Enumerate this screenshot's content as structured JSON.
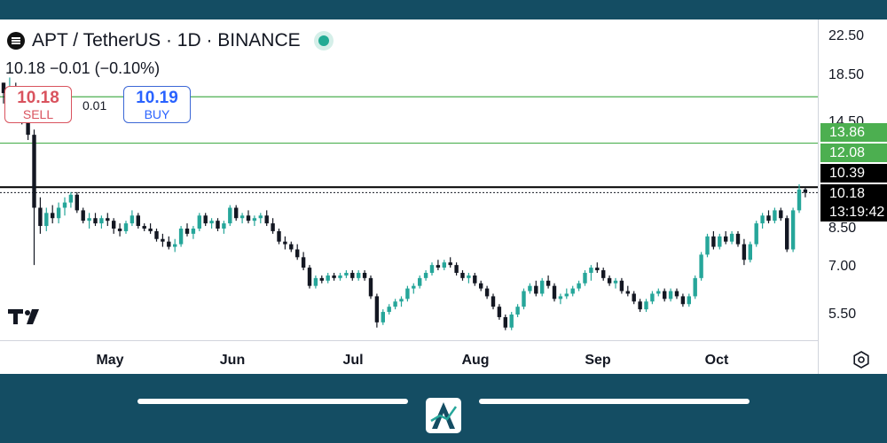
{
  "header": {
    "symbol_title": "APT / TetherUS · 1D · BINANCE",
    "ohlc": "10.18  −0.01 (−0.10%)"
  },
  "trade": {
    "sell_price": "10.18",
    "sell_label": "SELL",
    "spread": "0.01",
    "buy_price": "10.19",
    "buy_label": "BUY"
  },
  "colors": {
    "up": "#26a69a",
    "down": "#131722",
    "level_line": "#4caf50",
    "price_line": "#000000",
    "frame": "#144d63"
  },
  "chart_data": {
    "type": "candlestick",
    "title": "APT / TetherUS · 1D · BINANCE",
    "y_ticks": [
      "22.50",
      "18.50",
      "14.50",
      "8.50",
      "7.00",
      "5.50"
    ],
    "x_ticks": [
      "May",
      "Jun",
      "Jul",
      "Aug",
      "Sep",
      "Oct"
    ],
    "horizontal_levels": [
      {
        "label": "13.86",
        "value": 13.86,
        "color": "#4caf50"
      },
      {
        "label": "12.08",
        "value": 12.08,
        "color": "#4caf50"
      },
      {
        "label": "10.39",
        "value": 10.39,
        "color": "#000000"
      }
    ],
    "last_price": {
      "label": "10.18",
      "value": 10.18
    },
    "countdown": "13:19:42",
    "series": [
      {
        "values": [
          [
            14.4,
            14.4,
            13.6,
            14.0
          ],
          [
            14.0,
            14.6,
            13.6,
            14.2
          ],
          [
            14.2,
            14.4,
            13.2,
            13.5
          ],
          [
            13.5,
            13.8,
            12.8,
            13.0
          ],
          [
            13.0,
            13.2,
            12.2,
            12.4
          ],
          [
            12.4,
            12.6,
            7.4,
            9.6
          ],
          [
            9.6,
            10.0,
            8.6,
            8.9
          ],
          [
            8.9,
            9.6,
            8.7,
            9.4
          ],
          [
            9.4,
            9.7,
            9.0,
            9.2
          ],
          [
            9.2,
            9.8,
            9.0,
            9.6
          ],
          [
            9.6,
            10.0,
            9.3,
            9.8
          ],
          [
            9.8,
            10.2,
            9.6,
            10.1
          ],
          [
            10.1,
            10.2,
            9.4,
            9.5
          ],
          [
            9.5,
            9.6,
            9.0,
            9.1
          ],
          [
            9.1,
            9.4,
            8.8,
            9.2
          ],
          [
            9.2,
            9.4,
            8.9,
            9.0
          ],
          [
            9.0,
            9.3,
            8.8,
            9.2
          ],
          [
            9.2,
            9.4,
            8.9,
            9.1
          ],
          [
            9.1,
            9.2,
            8.6,
            8.8
          ],
          [
            8.8,
            9.0,
            8.5,
            8.7
          ],
          [
            8.7,
            9.1,
            8.6,
            9.0
          ],
          [
            9.0,
            9.5,
            8.9,
            9.3
          ],
          [
            9.3,
            9.4,
            8.8,
            8.9
          ],
          [
            8.9,
            9.0,
            8.7,
            8.8
          ],
          [
            8.8,
            9.0,
            8.6,
            8.7
          ],
          [
            8.7,
            8.8,
            8.3,
            8.4
          ],
          [
            8.4,
            8.6,
            8.1,
            8.3
          ],
          [
            8.3,
            8.5,
            8.0,
            8.1
          ],
          [
            8.1,
            8.4,
            7.9,
            8.2
          ],
          [
            8.2,
            8.9,
            8.1,
            8.8
          ],
          [
            8.8,
            9.0,
            8.5,
            8.6
          ],
          [
            8.6,
            8.9,
            8.4,
            8.8
          ],
          [
            8.8,
            9.4,
            8.7,
            9.3
          ],
          [
            9.3,
            9.4,
            8.9,
            9.0
          ],
          [
            9.0,
            9.2,
            8.8,
            9.1
          ],
          [
            9.1,
            9.2,
            8.7,
            8.8
          ],
          [
            8.8,
            9.1,
            8.6,
            9.0
          ],
          [
            9.0,
            9.7,
            8.9,
            9.6
          ],
          [
            9.6,
            9.7,
            9.1,
            9.2
          ],
          [
            9.2,
            9.4,
            9.0,
            9.3
          ],
          [
            9.3,
            9.5,
            9.0,
            9.1
          ],
          [
            9.1,
            9.3,
            8.9,
            9.2
          ],
          [
            9.2,
            9.4,
            9.0,
            9.3
          ],
          [
            9.3,
            9.5,
            8.9,
            9.0
          ],
          [
            9.0,
            9.2,
            8.6,
            8.7
          ],
          [
            8.7,
            8.8,
            8.2,
            8.3
          ],
          [
            8.3,
            8.5,
            8.0,
            8.2
          ],
          [
            8.2,
            8.3,
            7.9,
            8.0
          ],
          [
            8.0,
            8.2,
            7.6,
            7.7
          ],
          [
            7.7,
            7.9,
            7.2,
            7.3
          ],
          [
            7.3,
            7.4,
            6.5,
            6.6
          ],
          [
            6.6,
            7.0,
            6.5,
            6.9
          ],
          [
            6.9,
            7.0,
            6.7,
            6.8
          ],
          [
            6.8,
            7.1,
            6.7,
            7.0
          ],
          [
            7.0,
            7.1,
            6.8,
            6.9
          ],
          [
            6.9,
            7.1,
            6.8,
            7.0
          ],
          [
            7.0,
            7.2,
            6.9,
            7.1
          ],
          [
            7.1,
            7.2,
            6.8,
            6.9
          ],
          [
            6.9,
            7.2,
            6.8,
            7.1
          ],
          [
            7.1,
            7.2,
            6.8,
            6.9
          ],
          [
            6.9,
            7.0,
            6.1,
            6.2
          ],
          [
            6.2,
            6.3,
            5.0,
            5.2
          ],
          [
            5.2,
            5.7,
            5.1,
            5.6
          ],
          [
            5.6,
            5.9,
            5.5,
            5.8
          ],
          [
            5.8,
            6.1,
            5.7,
            6.0
          ],
          [
            6.0,
            6.2,
            5.8,
            6.1
          ],
          [
            6.1,
            6.6,
            6.0,
            6.5
          ],
          [
            6.5,
            6.7,
            6.3,
            6.6
          ],
          [
            6.6,
            7.0,
            6.5,
            6.9
          ],
          [
            6.9,
            7.2,
            6.8,
            7.1
          ],
          [
            7.1,
            7.5,
            7.0,
            7.4
          ],
          [
            7.4,
            7.6,
            7.2,
            7.3
          ],
          [
            7.3,
            7.6,
            7.2,
            7.5
          ],
          [
            7.5,
            7.7,
            7.3,
            7.4
          ],
          [
            7.4,
            7.5,
            7.0,
            7.1
          ],
          [
            7.1,
            7.2,
            6.8,
            6.9
          ],
          [
            6.9,
            7.1,
            6.7,
            7.0
          ],
          [
            7.0,
            7.1,
            6.6,
            6.7
          ],
          [
            6.7,
            6.8,
            6.4,
            6.5
          ],
          [
            6.5,
            6.6,
            6.1,
            6.2
          ],
          [
            6.2,
            6.3,
            5.7,
            5.8
          ],
          [
            5.8,
            5.9,
            5.3,
            5.4
          ],
          [
            5.4,
            5.5,
            4.9,
            5.0
          ],
          [
            5.0,
            5.6,
            4.9,
            5.5
          ],
          [
            5.5,
            5.9,
            5.4,
            5.8
          ],
          [
            5.8,
            6.5,
            5.7,
            6.4
          ],
          [
            6.4,
            6.7,
            6.3,
            6.6
          ],
          [
            6.6,
            6.8,
            6.2,
            6.3
          ],
          [
            6.3,
            6.9,
            6.2,
            6.8
          ],
          [
            6.8,
            7.0,
            6.5,
            6.6
          ],
          [
            6.6,
            6.7,
            6.0,
            6.1
          ],
          [
            6.1,
            6.3,
            5.9,
            6.2
          ],
          [
            6.2,
            6.5,
            6.1,
            6.3
          ],
          [
            6.3,
            6.6,
            6.2,
            6.5
          ],
          [
            6.5,
            6.8,
            6.4,
            6.7
          ],
          [
            6.7,
            7.2,
            6.6,
            7.1
          ],
          [
            7.1,
            7.4,
            6.8,
            7.3
          ],
          [
            7.3,
            7.5,
            7.1,
            7.2
          ],
          [
            7.2,
            7.3,
            6.8,
            6.9
          ],
          [
            6.9,
            7.0,
            6.6,
            6.7
          ],
          [
            6.7,
            6.9,
            6.5,
            6.8
          ],
          [
            6.8,
            6.9,
            6.3,
            6.4
          ],
          [
            6.4,
            6.6,
            6.2,
            6.3
          ],
          [
            6.3,
            6.4,
            5.9,
            6.0
          ],
          [
            6.0,
            6.1,
            5.6,
            5.7
          ],
          [
            5.7,
            6.1,
            5.6,
            6.0
          ],
          [
            6.0,
            6.4,
            5.9,
            6.3
          ],
          [
            6.3,
            6.5,
            6.2,
            6.4
          ],
          [
            6.4,
            6.5,
            6.0,
            6.1
          ],
          [
            6.1,
            6.5,
            6.0,
            6.4
          ],
          [
            6.4,
            6.5,
            6.1,
            6.2
          ],
          [
            6.2,
            6.3,
            5.8,
            5.9
          ],
          [
            5.9,
            6.3,
            5.8,
            6.2
          ],
          [
            6.2,
            7.0,
            6.1,
            6.9
          ],
          [
            6.9,
            7.9,
            6.8,
            7.8
          ],
          [
            7.8,
            8.6,
            7.7,
            8.5
          ],
          [
            8.5,
            8.7,
            8.0,
            8.1
          ],
          [
            8.1,
            8.6,
            8.0,
            8.5
          ],
          [
            8.5,
            8.7,
            8.2,
            8.3
          ],
          [
            8.3,
            8.7,
            8.2,
            8.6
          ],
          [
            8.6,
            8.7,
            8.1,
            8.2
          ],
          [
            8.2,
            8.4,
            7.4,
            7.6
          ],
          [
            7.6,
            8.3,
            7.5,
            8.2
          ],
          [
            8.2,
            9.1,
            8.1,
            9.0
          ],
          [
            9.0,
            9.4,
            8.8,
            9.3
          ],
          [
            9.3,
            9.5,
            9.0,
            9.1
          ],
          [
            9.1,
            9.6,
            9.0,
            9.5
          ],
          [
            9.5,
            9.6,
            9.1,
            9.2
          ],
          [
            9.2,
            9.3,
            7.9,
            8.0
          ],
          [
            8.0,
            9.6,
            7.9,
            9.5
          ],
          [
            9.5,
            10.5,
            9.4,
            10.3
          ],
          [
            10.3,
            10.4,
            10.0,
            10.18
          ]
        ]
      }
    ]
  }
}
